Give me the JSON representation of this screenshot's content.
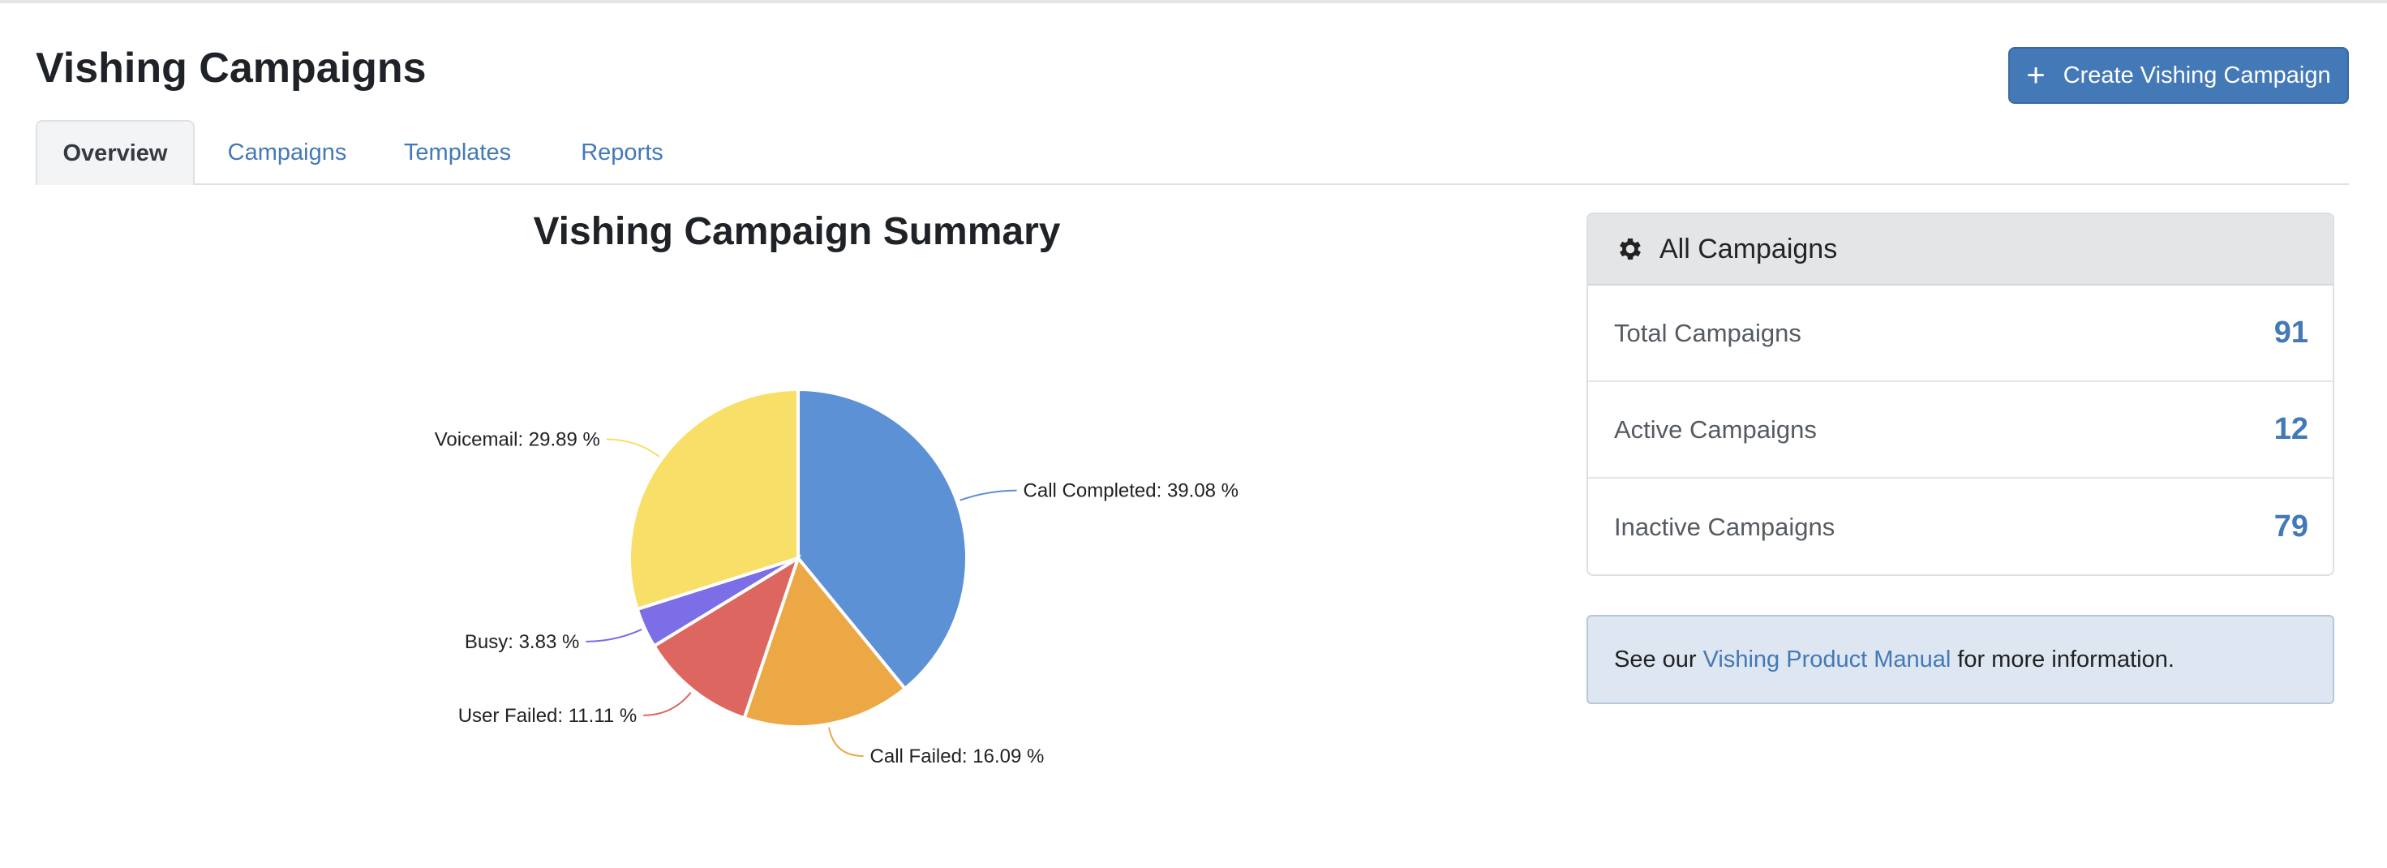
{
  "header": {
    "title": "Vishing Campaigns",
    "create_button": {
      "icon": "plus-icon",
      "label": "Create Vishing Campaign"
    }
  },
  "tabs": [
    {
      "label": "Overview",
      "active": true
    },
    {
      "label": "Campaigns",
      "active": false
    },
    {
      "label": "Templates",
      "active": false
    },
    {
      "label": "Reports",
      "active": false
    }
  ],
  "chart_data": {
    "type": "pie",
    "title": "Vishing Campaign Summary",
    "slices": [
      {
        "label": "Call Completed",
        "value": 39.08,
        "color": "#5c91d6"
      },
      {
        "label": "Call Failed",
        "value": 16.09,
        "color": "#eca844"
      },
      {
        "label": "User Failed",
        "value": 11.11,
        "color": "#de6660"
      },
      {
        "label": "Busy",
        "value": 3.83,
        "color": "#7b6ee6"
      },
      {
        "label": "Voicemail",
        "value": 29.89,
        "color": "#f7df68"
      }
    ]
  },
  "summary_card": {
    "icon": "gear-icon",
    "title": "All Campaigns",
    "rows": [
      {
        "label": "Total Campaigns",
        "value": "91"
      },
      {
        "label": "Active Campaigns",
        "value": "12"
      },
      {
        "label": "Inactive Campaigns",
        "value": "79"
      }
    ]
  },
  "info": {
    "prefix": "See our",
    "link": "Vishing Product Manual",
    "suffix": "for more information."
  }
}
